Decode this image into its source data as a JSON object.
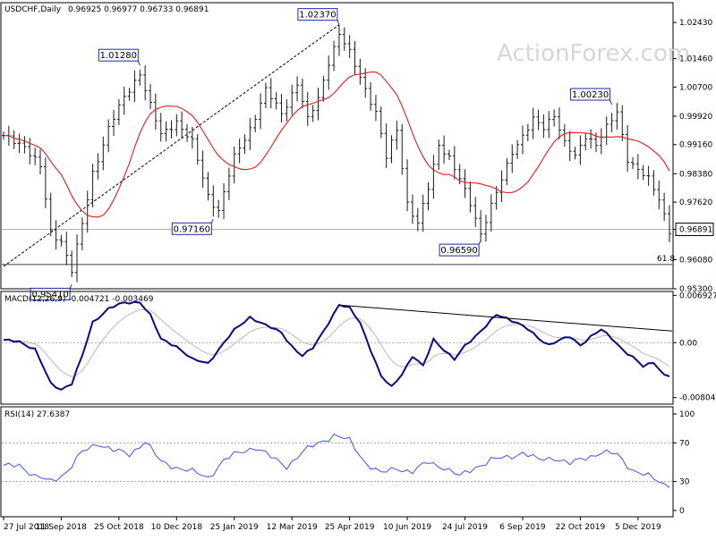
{
  "chart_data": [
    {
      "panel": "price",
      "type": "ohlc",
      "title": "USDCHF,Daily",
      "ohlc_header": "0.96925 0.96977 0.96733 0.96891",
      "watermark": "ActionForex.com",
      "ylim": [
        0.953,
        1.0296
      ],
      "y_ticks": [
        "1.02430",
        "1.01460",
        "1.00700",
        "0.99920",
        "0.99160",
        "0.98380",
        "0.97620",
        "0.96891",
        "0.96080",
        "0.95300"
      ],
      "last_price": "0.96891",
      "fib_label": "61.8",
      "fib_level": 0.9595,
      "trendline": {
        "from": [
          "27 Jul 2018",
          0.959
        ],
        "to": [
          "25 Apr 2019",
          1.0237
        ]
      },
      "callouts": [
        {
          "label": "1.02370",
          "date_index": 64,
          "value": 1.0237
        },
        {
          "label": "1.01280",
          "date_index": 26,
          "value": 1.0128
        },
        {
          "label": "1.00230",
          "date_index": 116,
          "value": 1.0023
        },
        {
          "label": "0.97160",
          "date_index": 40,
          "value": 0.9716
        },
        {
          "label": "0.96590",
          "date_index": 91,
          "value": 0.9659
        },
        {
          "label": "0.95410",
          "date_index": 13,
          "value": 0.9541
        }
      ],
      "x_labels": [
        "27 Jul 2018",
        "11 Sep 2018",
        "25 Oct 2018",
        "10 Dec 2018",
        "25 Jan 2019",
        "12 Mar 2019",
        "25 Apr 2019",
        "10 Jun 2019",
        "24 Jul 2019",
        "6 Sep 2019",
        "22 Oct 2019",
        "5 Dec 2019"
      ],
      "close_anchors": [
        [
          0,
          0.9935
        ],
        [
          4,
          0.9915
        ],
        [
          7,
          0.9855
        ],
        [
          9,
          0.968
        ],
        [
          11,
          0.966
        ],
        [
          13,
          0.958
        ],
        [
          15,
          0.97
        ],
        [
          17,
          0.984
        ],
        [
          20,
          0.996
        ],
        [
          23,
          1.004
        ],
        [
          26,
          1.011
        ],
        [
          28,
          1.002
        ],
        [
          30,
          0.994
        ],
        [
          33,
          0.998
        ],
        [
          36,
          0.992
        ],
        [
          39,
          0.978
        ],
        [
          41,
          0.974
        ],
        [
          44,
          0.988
        ],
        [
          47,
          0.996
        ],
        [
          50,
          1.006
        ],
        [
          53,
          1.0
        ],
        [
          56,
          1.008
        ],
        [
          58,
          0.998
        ],
        [
          60,
          1.004
        ],
        [
          62,
          1.014
        ],
        [
          64,
          1.021
        ],
        [
          66,
          1.016
        ],
        [
          68,
          1.01
        ],
        [
          71,
          1.0
        ],
        [
          73,
          0.988
        ],
        [
          75,
          0.996
        ],
        [
          77,
          0.976
        ],
        [
          79,
          0.97
        ],
        [
          81,
          0.98
        ],
        [
          83,
          0.992
        ],
        [
          85,
          0.988
        ],
        [
          87,
          0.982
        ],
        [
          89,
          0.976
        ],
        [
          91,
          0.968
        ],
        [
          93,
          0.975
        ],
        [
          95,
          0.982
        ],
        [
          97,
          0.99
        ],
        [
          99,
          0.994
        ],
        [
          101,
          0.998
        ],
        [
          103,
          0.996
        ],
        [
          105,
          1.0
        ],
        [
          107,
          0.992
        ],
        [
          109,
          0.988
        ],
        [
          111,
          0.994
        ],
        [
          113,
          0.992
        ],
        [
          115,
          0.996
        ],
        [
          117,
          1.0
        ],
        [
          119,
          0.988
        ],
        [
          121,
          0.985
        ],
        [
          123,
          0.982
        ],
        [
          125,
          0.977
        ],
        [
          127,
          0.9689
        ]
      ]
    },
    {
      "panel": "macd",
      "type": "line",
      "label": "MACD(12,26,9) -0.004721 -0.003469",
      "ylim": [
        -0.009,
        0.0075
      ],
      "y_ticks": [
        "0.006927",
        "0.00",
        "-0.008049"
      ],
      "trendline": {
        "from": [
          64,
          0.0055
        ],
        "to": [
          128,
          0.0017
        ]
      },
      "macd_anchors": [
        [
          0,
          0.0003
        ],
        [
          3,
          0.0002
        ],
        [
          6,
          -0.001
        ],
        [
          9,
          -0.006
        ],
        [
          11,
          -0.0068
        ],
        [
          13,
          -0.006
        ],
        [
          15,
          -0.002
        ],
        [
          17,
          0.003
        ],
        [
          20,
          0.005
        ],
        [
          23,
          0.0058
        ],
        [
          26,
          0.006
        ],
        [
          28,
          0.004
        ],
        [
          30,
          0.0005
        ],
        [
          33,
          -0.0005
        ],
        [
          36,
          -0.0025
        ],
        [
          39,
          -0.003
        ],
        [
          41,
          -0.001
        ],
        [
          44,
          0.0018
        ],
        [
          47,
          0.0038
        ],
        [
          50,
          0.0025
        ],
        [
          53,
          0.0015
        ],
        [
          55,
          -0.0005
        ],
        [
          57,
          -0.002
        ],
        [
          59,
          -0.0008
        ],
        [
          62,
          0.003
        ],
        [
          64,
          0.0055
        ],
        [
          66,
          0.005
        ],
        [
          68,
          0.003
        ],
        [
          70,
          -0.001
        ],
        [
          72,
          -0.005
        ],
        [
          74,
          -0.0065
        ],
        [
          76,
          -0.0045
        ],
        [
          78,
          -0.002
        ],
        [
          80,
          -0.0035
        ],
        [
          82,
          0.0005
        ],
        [
          84,
          -0.001
        ],
        [
          86,
          -0.0025
        ],
        [
          88,
          -0.0005
        ],
        [
          90,
          0.001
        ],
        [
          92,
          0.0025
        ],
        [
          94,
          0.004
        ],
        [
          96,
          0.0035
        ],
        [
          98,
          0.003
        ],
        [
          100,
          0.002
        ],
        [
          102,
          0.0005
        ],
        [
          104,
          -0.0003
        ],
        [
          106,
          0.0005
        ],
        [
          108,
          0.0008
        ],
        [
          110,
          -0.0005
        ],
        [
          112,
          0.001
        ],
        [
          114,
          0.002
        ],
        [
          116,
          0.0005
        ],
        [
          118,
          -0.001
        ],
        [
          120,
          -0.002
        ],
        [
          122,
          -0.0035
        ],
        [
          124,
          -0.003
        ],
        [
          126,
          -0.0047
        ]
      ]
    },
    {
      "panel": "rsi",
      "type": "line",
      "label": "RSI(14) 27.6387",
      "ylim": [
        0,
        100
      ],
      "y_ticks": [
        "100",
        "70",
        "30",
        "0"
      ],
      "levels": [
        70,
        30
      ],
      "rsi_anchors": [
        [
          0,
          45
        ],
        [
          3,
          48
        ],
        [
          6,
          35
        ],
        [
          9,
          30
        ],
        [
          12,
          40
        ],
        [
          15,
          60
        ],
        [
          18,
          70
        ],
        [
          21,
          62
        ],
        [
          24,
          58
        ],
        [
          27,
          72
        ],
        [
          30,
          50
        ],
        [
          33,
          45
        ],
        [
          36,
          40
        ],
        [
          39,
          34
        ],
        [
          42,
          52
        ],
        [
          45,
          60
        ],
        [
          48,
          66
        ],
        [
          51,
          55
        ],
        [
          54,
          46
        ],
        [
          57,
          60
        ],
        [
          60,
          70
        ],
        [
          63,
          78
        ],
        [
          66,
          72
        ],
        [
          69,
          50
        ],
        [
          72,
          38
        ],
        [
          75,
          44
        ],
        [
          78,
          40
        ],
        [
          81,
          50
        ],
        [
          84,
          45
        ],
        [
          87,
          35
        ],
        [
          90,
          45
        ],
        [
          93,
          52
        ],
        [
          96,
          55
        ],
        [
          99,
          60
        ],
        [
          102,
          52
        ],
        [
          105,
          55
        ],
        [
          108,
          48
        ],
        [
          111,
          55
        ],
        [
          114,
          60
        ],
        [
          117,
          58
        ],
        [
          120,
          42
        ],
        [
          123,
          35
        ],
        [
          126,
          27.6
        ]
      ]
    }
  ],
  "colors": {
    "price_bars": "#1a1a1a",
    "moving_average": "#e21a1a",
    "macd_line": "#0b0b80",
    "signal_line": "#b9b9b9",
    "trendline": "#000000",
    "rsi_line": "#3f52e6",
    "level_line": "#8a8a8a",
    "callout_border": "#1c2ba0",
    "background": "#ffffff"
  }
}
